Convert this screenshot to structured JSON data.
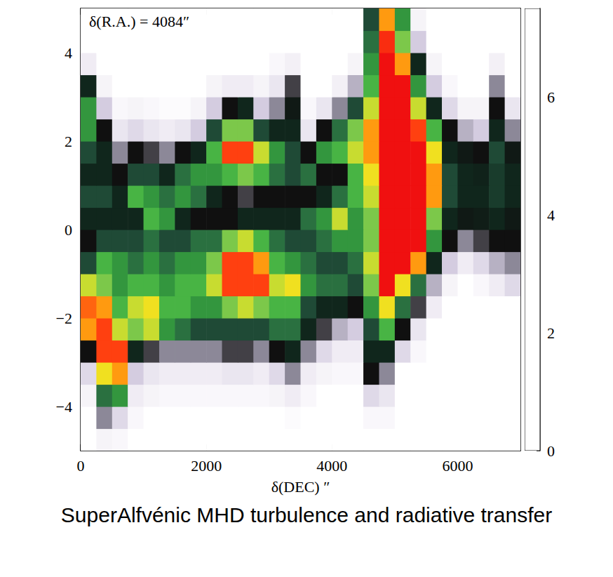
{
  "chart_data": {
    "type": "heatmap",
    "title": "SuperAlfvénic MHD turbulence and radiative transfer",
    "annotation": "δ(R.A.) = 4084″",
    "x_label": "δ(DEC) ″",
    "xlim": [
      0,
      7000
    ],
    "xticks": [
      0,
      2000,
      4000,
      6000
    ],
    "ylim": [
      -5,
      5
    ],
    "yticks": [
      {
        "value": -4,
        "label": "−4"
      },
      {
        "value": -2,
        "label": "−2"
      },
      0,
      2,
      4
    ],
    "x_edges": [
      0,
      250,
      500,
      750,
      1000,
      1250,
      1500,
      1750,
      2000,
      2250,
      2500,
      2750,
      3000,
      3250,
      3500,
      3750,
      4000,
      4250,
      4500,
      4750,
      5000,
      5250,
      5500,
      5750,
      6000,
      6250,
      6500,
      6750,
      7000
    ],
    "y_edges": [
      -5,
      -4.5,
      -4,
      -3.5,
      -3,
      -2.5,
      -2,
      -1.5,
      -1,
      -0.5,
      0,
      0.5,
      1,
      1.5,
      2,
      2.5,
      3,
      3.5,
      4,
      4.5,
      5
    ],
    "cells": [
      [
        0,
        0.3,
        0.2,
        0,
        0,
        0,
        0,
        0,
        0,
        0,
        0,
        0,
        0,
        0,
        0,
        0,
        0,
        0,
        0,
        0,
        0,
        0,
        0,
        0,
        0,
        0,
        0,
        0
      ],
      [
        0,
        1.5,
        0.8,
        0.2,
        0,
        0,
        0,
        0,
        0,
        0,
        0,
        0,
        0,
        0.1,
        0,
        0,
        0,
        0,
        0.2,
        0.2,
        0,
        0,
        0,
        0,
        0,
        0,
        0,
        0
      ],
      [
        0.3,
        3.5,
        4,
        0.5,
        0.3,
        0.2,
        0.2,
        0.2,
        0.2,
        0.2,
        0.2,
        0.2,
        0.3,
        0.5,
        0.2,
        0,
        0,
        0,
        0.8,
        0.6,
        0,
        0,
        0,
        0,
        0,
        0,
        0,
        0
      ],
      [
        0.8,
        6,
        6.5,
        1,
        0.6,
        0.5,
        0.5,
        0.5,
        0.5,
        0.6,
        0.6,
        0.5,
        0.8,
        1.5,
        0.5,
        0.3,
        0.2,
        0.2,
        2,
        1.5,
        0,
        0,
        0,
        0,
        0,
        0,
        0,
        0
      ],
      [
        2,
        7,
        7,
        2.5,
        1.8,
        1.5,
        1.5,
        1.5,
        1.5,
        1.8,
        1.8,
        1.5,
        2,
        2.5,
        1.5,
        0.8,
        0.5,
        0.5,
        2.5,
        2.5,
        0.8,
        0.2,
        0,
        0,
        0,
        0,
        0,
        0
      ],
      [
        6.5,
        7,
        5.5,
        5,
        5.5,
        4,
        3.5,
        3,
        3,
        3,
        3,
        3,
        3.5,
        3.5,
        2.5,
        1.8,
        1.2,
        1,
        3,
        4.5,
        2,
        0.6,
        0,
        0,
        0,
        0,
        0,
        0
      ],
      [
        6.8,
        6.5,
        4.5,
        5.5,
        6,
        4.5,
        4.5,
        4,
        4,
        5,
        5.5,
        5,
        4.5,
        4.5,
        3,
        2.5,
        2.5,
        2,
        4,
        6,
        3.5,
        1.8,
        0.5,
        0,
        0,
        0,
        0,
        0
      ],
      [
        5.5,
        5,
        4,
        4.5,
        4.5,
        4,
        4.5,
        4.5,
        5.5,
        7,
        7,
        7,
        5.5,
        6,
        4,
        3.5,
        3.5,
        3,
        5,
        7.5,
        6,
        3.5,
        1.2,
        0.3,
        0,
        0.2,
        0.5,
        0.8
      ],
      [
        3,
        4.5,
        4,
        3.5,
        4,
        3.5,
        4,
        4,
        5,
        7,
        7,
        6.5,
        4.5,
        4,
        3.5,
        3,
        3,
        3.5,
        5.5,
        7.5,
        7.5,
        6.5,
        2.5,
        1,
        0.5,
        0.8,
        1.2,
        1.5
      ],
      [
        2,
        3,
        3,
        3,
        3.5,
        3,
        3,
        3.5,
        3.5,
        5,
        5.5,
        4.5,
        3.5,
        3,
        3,
        3.5,
        4,
        4,
        5,
        7.5,
        7.5,
        7.5,
        4,
        2,
        1.5,
        1.8,
        2,
        2
      ],
      [
        2.5,
        2.5,
        2.5,
        2.5,
        4.5,
        4,
        2.5,
        2,
        2,
        2,
        2.5,
        2.5,
        2.5,
        2.5,
        3.5,
        4,
        5.5,
        4,
        5,
        7.5,
        7.5,
        7.5,
        5,
        2.5,
        2.2,
        2.3,
        2.5,
        2.2
      ],
      [
        3,
        3,
        2.5,
        4.5,
        4,
        3.5,
        4,
        3.5,
        2.5,
        2,
        1.8,
        2,
        2,
        2,
        2,
        2.5,
        3.5,
        4.5,
        5.5,
        7.5,
        7.5,
        7.5,
        6.5,
        3,
        2.5,
        2.5,
        2.8,
        2.5
      ],
      [
        2.5,
        2.5,
        2,
        3,
        3,
        2.5,
        3.5,
        4,
        4,
        4.5,
        5,
        4.5,
        3.5,
        3,
        3.5,
        2,
        2,
        4.5,
        6,
        7.5,
        7.5,
        7.5,
        6.5,
        3,
        2.5,
        2.4,
        2.8,
        2.5
      ],
      [
        3,
        2.5,
        1.5,
        2,
        1.8,
        1.5,
        2,
        2.5,
        4.5,
        7,
        7,
        5.5,
        4,
        3,
        2,
        4,
        4.5,
        5.5,
        6.5,
        7.5,
        7.5,
        7.5,
        6,
        2.5,
        2.2,
        2,
        3,
        2.2
      ],
      [
        4,
        2,
        0.6,
        0.8,
        0.6,
        0.5,
        0.6,
        1,
        3,
        5,
        5,
        3,
        2.5,
        2.5,
        0.6,
        2,
        3.5,
        5,
        6.5,
        7.5,
        7.5,
        7,
        4.5,
        2,
        1.2,
        1,
        2.5,
        1.5
      ],
      [
        4,
        1,
        0.2,
        0.3,
        0.2,
        0.1,
        0.1,
        0.3,
        1,
        2,
        2.5,
        1,
        1.5,
        2.2,
        0.2,
        0.6,
        1.5,
        3,
        5.5,
        7.5,
        7.5,
        5.5,
        2.5,
        0.8,
        0.3,
        0.3,
        2,
        0.6
      ],
      [
        2.5,
        0.3,
        0,
        0,
        0,
        0,
        0,
        0,
        0.3,
        0.5,
        0.5,
        0.3,
        0.6,
        1.8,
        0,
        0,
        0.4,
        1.2,
        4.5,
        7.5,
        7.5,
        4,
        1,
        0.2,
        0,
        0,
        1.5,
        0
      ],
      [
        0.5,
        0,
        0,
        0,
        0,
        0,
        0,
        0,
        0,
        0,
        0,
        0,
        0.2,
        0.4,
        0,
        0,
        0,
        0.3,
        4,
        7.5,
        6.5,
        2.5,
        0.3,
        0,
        0,
        0,
        0.4,
        0
      ],
      [
        0,
        0,
        0,
        0,
        0,
        0,
        0,
        0,
        0,
        0,
        0,
        0,
        0,
        0,
        0,
        0,
        0,
        0,
        3.5,
        7.2,
        5,
        1,
        0,
        0,
        0,
        0,
        0,
        0
      ],
      [
        0,
        0,
        0,
        0,
        0,
        0,
        0,
        0,
        0,
        0,
        0,
        0,
        0,
        0,
        0,
        0,
        0,
        0,
        3,
        6.5,
        4,
        0.3,
        0,
        0,
        0,
        0,
        0,
        0
      ]
    ],
    "colorbar_range": [
      0,
      7.5
    ],
    "colorbar_ticks": [
      0,
      2,
      4,
      6
    ]
  }
}
